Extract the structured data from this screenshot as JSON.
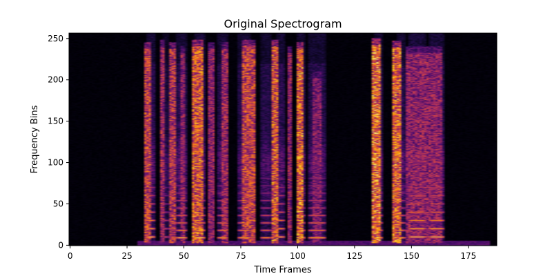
{
  "chart_data": {
    "type": "heatmap",
    "title": "Original Spectrogram",
    "xlabel": "Time Frames",
    "ylabel": "Frequency Bins",
    "xlim": [
      -0.5,
      187.5
    ],
    "ylim": [
      -0.5,
      256.5
    ],
    "x_ticks": [
      0,
      25,
      50,
      75,
      100,
      125,
      150,
      175
    ],
    "y_ticks": [
      0,
      50,
      100,
      150,
      200,
      250
    ],
    "x_tick_labels": [
      "0",
      "25",
      "50",
      "75",
      "100",
      "125",
      "150",
      "175"
    ],
    "y_tick_labels": [
      "0",
      "50",
      "100",
      "150",
      "200",
      "250"
    ],
    "colormap": "inferno",
    "colormap_stops": [
      "#000004",
      "#1b0c41",
      "#4a0c6b",
      "#781c6d",
      "#a52c60",
      "#cf4446",
      "#ed6925",
      "#fb9b06",
      "#f7d13d",
      "#fcffa4"
    ],
    "background_color": "#000004",
    "grid": false,
    "voiced_segments": [
      {
        "start": 34,
        "end": 37,
        "f0_bin": 10,
        "strength": 0.9
      },
      {
        "start": 41,
        "end": 43,
        "f0_bin": 10,
        "strength": 0.6
      },
      {
        "start": 47,
        "end": 51,
        "f0_bin": 9,
        "strength": 0.85
      },
      {
        "start": 55,
        "end": 59,
        "f0_bin": 9,
        "strength": 0.9
      },
      {
        "start": 65,
        "end": 69,
        "f0_bin": 9,
        "strength": 0.8
      },
      {
        "start": 74,
        "end": 79,
        "f0_bin": 9,
        "strength": 0.8
      },
      {
        "start": 84,
        "end": 88,
        "f0_bin": 9,
        "strength": 0.75
      },
      {
        "start": 91,
        "end": 94,
        "f0_bin": 10,
        "strength": 0.85
      },
      {
        "start": 100,
        "end": 103,
        "f0_bin": 9,
        "strength": 0.8
      },
      {
        "start": 105,
        "end": 112,
        "f0_bin": 9,
        "strength": 0.8
      },
      {
        "start": 134,
        "end": 137,
        "f0_bin": 9,
        "strength": 0.85
      },
      {
        "start": 144,
        "end": 147,
        "f0_bin": 9,
        "strength": 0.8
      },
      {
        "start": 149,
        "end": 156,
        "f0_bin": 10,
        "strength": 0.9
      },
      {
        "start": 158,
        "end": 164,
        "f0_bin": 10,
        "strength": 0.9
      }
    ],
    "broadband_bursts": [
      {
        "start": 33,
        "end": 35,
        "top_bin": 245,
        "strength": 0.75
      },
      {
        "start": 40,
        "end": 41,
        "top_bin": 248,
        "strength": 0.6
      },
      {
        "start": 44,
        "end": 46,
        "top_bin": 245,
        "strength": 0.7
      },
      {
        "start": 49,
        "end": 50,
        "top_bin": 240,
        "strength": 0.55
      },
      {
        "start": 54,
        "end": 58,
        "top_bin": 248,
        "strength": 0.85
      },
      {
        "start": 61,
        "end": 63,
        "top_bin": 245,
        "strength": 0.55
      },
      {
        "start": 67,
        "end": 69,
        "top_bin": 245,
        "strength": 0.6
      },
      {
        "start": 76,
        "end": 81,
        "top_bin": 248,
        "strength": 0.75
      },
      {
        "start": 89,
        "end": 91,
        "top_bin": 248,
        "strength": 0.85
      },
      {
        "start": 96,
        "end": 97,
        "top_bin": 240,
        "strength": 0.55
      },
      {
        "start": 100,
        "end": 102,
        "top_bin": 245,
        "strength": 0.9
      },
      {
        "start": 107,
        "end": 110,
        "top_bin": 210,
        "strength": 0.5
      },
      {
        "start": 133,
        "end": 136,
        "top_bin": 250,
        "strength": 0.95
      },
      {
        "start": 142,
        "end": 145,
        "top_bin": 247,
        "strength": 0.9
      },
      {
        "start": 148,
        "end": 163,
        "top_bin": 240,
        "strength": 0.55
      }
    ]
  }
}
